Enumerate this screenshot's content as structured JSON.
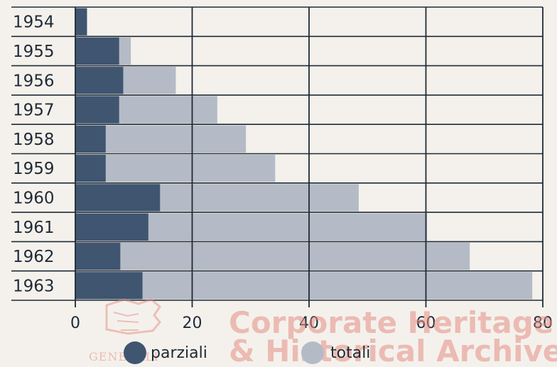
{
  "chart_data": {
    "type": "bar",
    "orientation": "horizontal",
    "categories": [
      "1954",
      "1955",
      "1956",
      "1957",
      "1958",
      "1959",
      "1960",
      "1961",
      "1962",
      "1963"
    ],
    "series": [
      {
        "name": "parziali",
        "color": "#3f5570",
        "values": [
          2,
          7.5,
          8.2,
          7.5,
          5.2,
          5.2,
          14.5,
          12.5,
          7.7,
          11.5
        ]
      },
      {
        "name": "totali",
        "color": "#b4bbc6",
        "values": [
          2,
          9.5,
          17.2,
          24.3,
          29.2,
          34.2,
          48.5,
          60.2,
          67.5,
          78.2
        ]
      }
    ],
    "x_ticks": [
      "0",
      "20",
      "40",
      "60",
      "80"
    ],
    "xlim": [
      0,
      80
    ],
    "grid": true,
    "legend_position": "bottom",
    "title": "",
    "xlabel": "",
    "ylabel": ""
  },
  "watermark": {
    "line1": "Corporate Heritage",
    "line2": "& Historical Archive",
    "logo_text": "GENERALI"
  }
}
